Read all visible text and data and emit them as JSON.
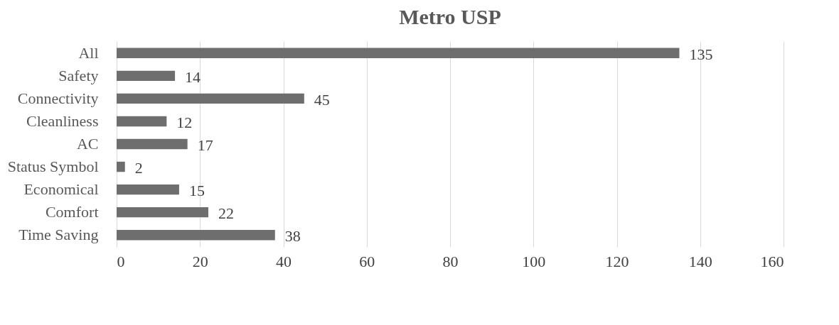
{
  "chart_data": {
    "type": "bar",
    "orientation": "horizontal",
    "title": "Metro USP",
    "categories": [
      "All",
      "Safety",
      "Connectivity",
      "Cleanliness",
      "AC",
      "Status Symbol",
      "Economical",
      "Comfort",
      "Time Saving"
    ],
    "values": [
      135,
      14,
      45,
      12,
      17,
      2,
      15,
      22,
      38
    ],
    "color": "#6e6e6e",
    "xlim": [
      0,
      160
    ],
    "xticks": [
      0,
      20,
      40,
      60,
      80,
      100,
      120,
      140,
      160
    ],
    "grid": "x",
    "data_labels": true
  }
}
